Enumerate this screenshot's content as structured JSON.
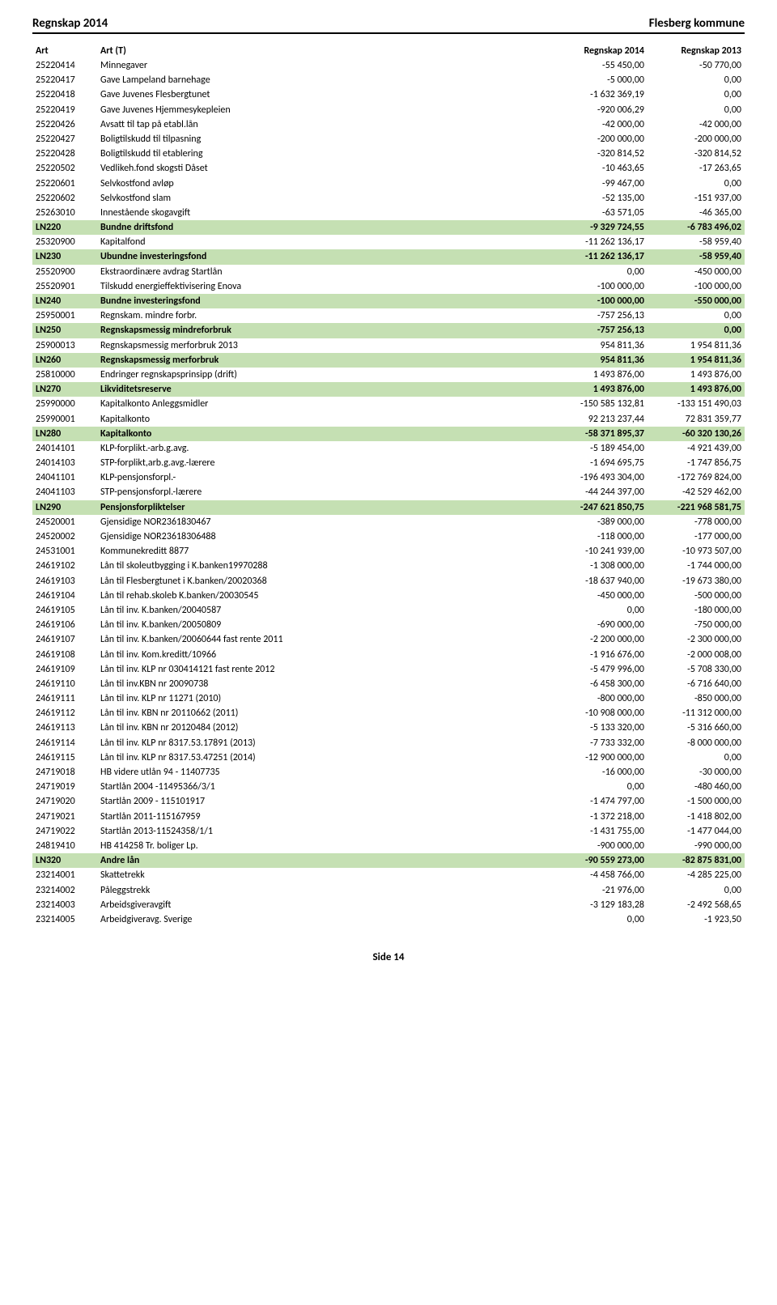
{
  "header": {
    "left": "Regnskap 2014",
    "right": "Flesberg kommune"
  },
  "columns": {
    "c1": "Art",
    "c2": "Art (T)",
    "c3": "Regnskap 2014",
    "c4": "Regnskap 2013"
  },
  "highlight_color": "#c5e0b3",
  "rows": [
    {
      "a": "25220414",
      "t": "Minnegaver",
      "r14": "-55 450,00",
      "r13": "-50 770,00"
    },
    {
      "a": "25220417",
      "t": "Gave Lampeland barnehage",
      "r14": "-5 000,00",
      "r13": "0,00"
    },
    {
      "a": "25220418",
      "t": "Gave Juvenes Flesbergtunet",
      "r14": "-1 632 369,19",
      "r13": "0,00"
    },
    {
      "a": "25220419",
      "t": "Gave Juvenes Hjemmesykepleien",
      "r14": "-920 006,29",
      "r13": "0,00"
    },
    {
      "a": "25220426",
      "t": "Avsatt til tap på etabl.lån",
      "r14": "-42 000,00",
      "r13": "-42 000,00"
    },
    {
      "a": "25220427",
      "t": "Boligtilskudd til tilpasning",
      "r14": "-200 000,00",
      "r13": "-200 000,00"
    },
    {
      "a": "25220428",
      "t": "Boligtilskudd til etablering",
      "r14": "-320 814,52",
      "r13": "-320 814,52"
    },
    {
      "a": "25220502",
      "t": "Vedlikeh.fond skogsti Dåset",
      "r14": "-10 463,65",
      "r13": "-17 263,65"
    },
    {
      "a": "25220601",
      "t": "Selvkostfond avløp",
      "r14": "-99 467,00",
      "r13": "0,00"
    },
    {
      "a": "25220602",
      "t": "Selvkostfond slam",
      "r14": "-52 135,00",
      "r13": "-151 937,00"
    },
    {
      "a": "25263010",
      "t": "Innestående skogavgift",
      "r14": "-63 571,05",
      "r13": "-46 365,00"
    },
    {
      "a": "LN220",
      "t": "Bundne driftsfond",
      "r14": "-9 329 724,55",
      "r13": "-6 783 496,02",
      "hl": true
    },
    {
      "a": "25320900",
      "t": "Kapitalfond",
      "r14": "-11 262 136,17",
      "r13": "-58 959,40"
    },
    {
      "a": "LN230",
      "t": "Ubundne investeringsfond",
      "r14": "-11 262 136,17",
      "r13": "-58 959,40",
      "hl": true
    },
    {
      "a": "25520900",
      "t": "Ekstraordinære avdrag Startlån",
      "r14": "0,00",
      "r13": "-450 000,00"
    },
    {
      "a": "25520901",
      "t": "Tilskudd energieffektivisering Enova",
      "r14": "-100 000,00",
      "r13": "-100 000,00"
    },
    {
      "a": "LN240",
      "t": "Bundne investeringsfond",
      "r14": "-100 000,00",
      "r13": "-550 000,00",
      "hl": true
    },
    {
      "a": "25950001",
      "t": "Regnskam. mindre forbr.",
      "r14": "-757 256,13",
      "r13": "0,00"
    },
    {
      "a": "LN250",
      "t": "Regnskapsmessig mindreforbruk",
      "r14": "-757 256,13",
      "r13": "0,00",
      "hl": true
    },
    {
      "a": "25900013",
      "t": "Regnskapsmessig merforbruk 2013",
      "r14": "954 811,36",
      "r13": "1 954 811,36"
    },
    {
      "a": "LN260",
      "t": "Regnskapsmessig merforbruk",
      "r14": "954 811,36",
      "r13": "1 954 811,36",
      "hl": true
    },
    {
      "a": "25810000",
      "t": "Endringer regnskapsprinsipp (drift)",
      "r14": "1 493 876,00",
      "r13": "1 493 876,00"
    },
    {
      "a": "LN270",
      "t": "Likviditetsreserve",
      "r14": "1 493 876,00",
      "r13": "1 493 876,00",
      "hl": true
    },
    {
      "a": "25990000",
      "t": "Kapitalkonto Anleggsmidler",
      "r14": "-150 585 132,81",
      "r13": "-133 151 490,03"
    },
    {
      "a": "25990001",
      "t": "Kapitalkonto",
      "r14": "92 213 237,44",
      "r13": "72 831 359,77"
    },
    {
      "a": "LN280",
      "t": "Kapitalkonto",
      "r14": "-58 371 895,37",
      "r13": "-60 320 130,26",
      "hl": true
    },
    {
      "a": "24014101",
      "t": "KLP-forplikt.-arb.g.avg.",
      "r14": "-5 189 454,00",
      "r13": "-4 921 439,00"
    },
    {
      "a": "24014103",
      "t": "STP-forplikt,arb.g.avg.-lærere",
      "r14": "-1 694 695,75",
      "r13": "-1 747 856,75"
    },
    {
      "a": "24041101",
      "t": "KLP-pensjonsforpl.-",
      "r14": "-196 493 304,00",
      "r13": "-172 769 824,00"
    },
    {
      "a": "24041103",
      "t": "STP-pensjonsforpl.-lærere",
      "r14": "-44 244 397,00",
      "r13": "-42 529 462,00"
    },
    {
      "a": "LN290",
      "t": "Pensjonsforpliktelser",
      "r14": "-247 621 850,75",
      "r13": "-221 968 581,75",
      "hl": true
    },
    {
      "a": "24520001",
      "t": "Gjensidige NOR2361830467",
      "r14": "-389 000,00",
      "r13": "-778 000,00"
    },
    {
      "a": "24520002",
      "t": "Gjensidige NOR23618306488",
      "r14": "-118 000,00",
      "r13": "-177 000,00"
    },
    {
      "a": "24531001",
      "t": "Kommunekreditt 8877",
      "r14": "-10 241 939,00",
      "r13": "-10 973 507,00"
    },
    {
      "a": "24619102",
      "t": "Lån til skoleutbygging i K.banken19970288",
      "r14": "-1 308 000,00",
      "r13": "-1 744 000,00"
    },
    {
      "a": "24619103",
      "t": "Lån til Flesbergtunet i K.banken/20020368",
      "r14": "-18 637 940,00",
      "r13": "-19 673 380,00"
    },
    {
      "a": "24619104",
      "t": "Lån til rehab.skoleb K.banken/20030545",
      "r14": "-450 000,00",
      "r13": "-500 000,00"
    },
    {
      "a": "24619105",
      "t": "Lån til inv. K.banken/20040587",
      "r14": "0,00",
      "r13": "-180 000,00"
    },
    {
      "a": "24619106",
      "t": "Lån til inv. K.banken/20050809",
      "r14": "-690 000,00",
      "r13": "-750 000,00"
    },
    {
      "a": "24619107",
      "t": "Lån til inv. K.banken/20060644 fast rente 2011",
      "r14": "-2 200 000,00",
      "r13": "-2 300 000,00"
    },
    {
      "a": "24619108",
      "t": "Lån til inv. Kom.kreditt/10966",
      "r14": "-1 916 676,00",
      "r13": "-2 000 008,00"
    },
    {
      "a": "24619109",
      "t": "Lån til inv. KLP nr 030414121 fast rente 2012",
      "r14": "-5 479 996,00",
      "r13": "-5 708 330,00"
    },
    {
      "a": "24619110",
      "t": "Lån til inv.KBN nr 20090738",
      "r14": "-6 458 300,00",
      "r13": "-6 716 640,00"
    },
    {
      "a": "24619111",
      "t": "Lån til inv. KLP nr 11271 (2010)",
      "r14": "-800 000,00",
      "r13": "-850 000,00"
    },
    {
      "a": "24619112",
      "t": "Lån til inv. KBN nr 20110662 (2011)",
      "r14": "-10 908 000,00",
      "r13": "-11 312 000,00"
    },
    {
      "a": "24619113",
      "t": "Lån til inv. KBN nr 20120484 (2012)",
      "r14": "-5 133 320,00",
      "r13": "-5 316 660,00"
    },
    {
      "a": "24619114",
      "t": "Lån til inv. KLP nr 8317.53.17891 (2013)",
      "r14": "-7 733 332,00",
      "r13": "-8 000 000,00"
    },
    {
      "a": "24619115",
      "t": "Lån til inv. KLP nr 8317.53.47251 (2014)",
      "r14": "-12 900 000,00",
      "r13": "0,00"
    },
    {
      "a": "24719018",
      "t": "HB videre utlån 94 - 11407735",
      "r14": "-16 000,00",
      "r13": "-30 000,00"
    },
    {
      "a": "24719019",
      "t": "Startlån 2004 -11495366/3/1",
      "r14": "0,00",
      "r13": "-480 460,00"
    },
    {
      "a": "24719020",
      "t": "Startlån 2009 - 115101917",
      "r14": "-1 474 797,00",
      "r13": "-1 500 000,00"
    },
    {
      "a": "24719021",
      "t": "Startlån 2011-115167959",
      "r14": "-1 372 218,00",
      "r13": "-1 418 802,00"
    },
    {
      "a": "24719022",
      "t": "Startlån 2013-11524358/1/1",
      "r14": "-1 431 755,00",
      "r13": "-1 477 044,00"
    },
    {
      "a": "24819410",
      "t": "HB 414258 Tr. boliger Lp.",
      "r14": "-900 000,00",
      "r13": "-990 000,00"
    },
    {
      "a": "LN320",
      "t": "Andre lån",
      "r14": "-90 559 273,00",
      "r13": "-82 875 831,00",
      "hl": true
    },
    {
      "a": "23214001",
      "t": "Skattetrekk",
      "r14": "-4 458 766,00",
      "r13": "-4 285 225,00"
    },
    {
      "a": "23214002",
      "t": "Påleggstrekk",
      "r14": "-21 976,00",
      "r13": "0,00"
    },
    {
      "a": "23214003",
      "t": "Arbeidsgiveravgift",
      "r14": "-3 129 183,28",
      "r13": "-2 492 568,65"
    },
    {
      "a": "23214005",
      "t": "Arbeidgiveravg. Sverige",
      "r14": "0,00",
      "r13": "-1 923,50"
    }
  ],
  "footer": "Side 14"
}
